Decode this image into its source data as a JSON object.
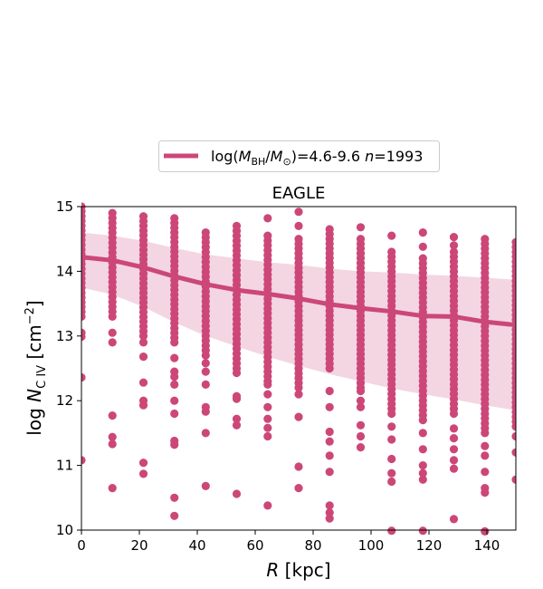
{
  "chart_data": {
    "type": "scatter",
    "title": "EAGLE",
    "xlabel": "R [kpc]",
    "ylabel": "log N_C IV [cm^-2]",
    "xlim": [
      0,
      150
    ],
    "ylim": [
      10,
      15
    ],
    "xticks": [
      "0",
      "20",
      "40",
      "60",
      "80",
      "100",
      "120",
      "140"
    ],
    "yticks": [
      "10",
      "11",
      "12",
      "13",
      "14",
      "15"
    ],
    "grid": false,
    "legend_position": "top-center",
    "colors": {
      "series": "#cc4778",
      "band": "#f3d6e2"
    },
    "series": [
      {
        "name": "log(M_BH/M_⊙)=4.6-9.6 n=1993",
        "type": "line",
        "x": [
          0,
          10.7,
          21.4,
          32.1,
          42.9,
          53.6,
          64.3,
          75,
          85.7,
          96.4,
          107.1,
          117.9,
          128.6,
          139.3,
          150
        ],
        "y": [
          14.22,
          14.17,
          14.06,
          13.92,
          13.8,
          13.71,
          13.65,
          13.58,
          13.49,
          13.43,
          13.38,
          13.31,
          13.3,
          13.22,
          13.17
        ]
      }
    ],
    "band": {
      "x": [
        0,
        10.7,
        21.4,
        32.1,
        42.9,
        53.6,
        64.3,
        75,
        85.7,
        96.4,
        107.1,
        117.9,
        128.6,
        139.3,
        150
      ],
      "upper": [
        14.6,
        14.55,
        14.47,
        14.36,
        14.26,
        14.2,
        14.14,
        14.1,
        14.04,
        14.0,
        13.98,
        13.95,
        13.93,
        13.9,
        13.87
      ],
      "lower": [
        13.75,
        13.64,
        13.45,
        13.21,
        13.0,
        12.84,
        12.68,
        12.54,
        12.41,
        12.3,
        12.19,
        12.1,
        12.02,
        11.93,
        11.85
      ]
    },
    "scatter_columns": [
      {
        "x": 0,
        "core": [
          13.3,
          15.0
        ],
        "extra": [
          13.05,
          12.99,
          12.36,
          11.08
        ]
      },
      {
        "x": 10.7,
        "core": [
          13.3,
          14.9
        ],
        "extra": [
          13.05,
          12.9,
          11.77,
          11.44,
          11.33,
          10.65
        ]
      },
      {
        "x": 21.4,
        "core": [
          13.0,
          14.85
        ],
        "extra": [
          12.9,
          12.68,
          12.28,
          12.0,
          11.93,
          11.04,
          10.87
        ]
      },
      {
        "x": 32.1,
        "core": [
          12.9,
          14.82
        ],
        "extra": [
          12.66,
          12.45,
          12.37,
          12.25,
          12.0,
          11.8,
          11.38,
          11.32,
          10.5,
          10.22
        ]
      },
      {
        "x": 42.9,
        "core": [
          12.7,
          14.6
        ],
        "extra": [
          12.58,
          12.45,
          12.25,
          11.9,
          11.83,
          11.5,
          10.68
        ]
      },
      {
        "x": 53.6,
        "core": [
          12.5,
          14.7
        ],
        "extra": [
          12.43,
          12.07,
          12.03,
          11.72,
          11.62,
          10.56
        ]
      },
      {
        "x": 64.3,
        "core": [
          12.3,
          14.55
        ],
        "extra": [
          14.82,
          12.25,
          12.1,
          11.9,
          11.72,
          11.58,
          11.45,
          10.38
        ]
      },
      {
        "x": 75,
        "core": [
          12.2,
          14.5
        ],
        "extra": [
          14.92,
          14.7,
          12.1,
          11.75,
          10.98,
          10.65
        ]
      },
      {
        "x": 85.7,
        "core": [
          12.5,
          14.65
        ],
        "extra": [
          12.15,
          11.9,
          11.52,
          11.37,
          11.15,
          10.9,
          10.38,
          10.27,
          10.18
        ]
      },
      {
        "x": 96.4,
        "core": [
          12.2,
          14.5
        ],
        "extra": [
          14.68,
          12.15,
          12.0,
          11.9,
          11.62,
          11.45,
          11.28
        ]
      },
      {
        "x": 107.1,
        "core": [
          11.8,
          14.3
        ],
        "extra": [
          14.55,
          11.6,
          11.4,
          11.1,
          10.88,
          10.75,
          9.99
        ]
      },
      {
        "x": 117.9,
        "core": [
          11.7,
          14.2
        ],
        "extra": [
          14.6,
          14.38,
          11.5,
          11.25,
          11.0,
          10.88,
          10.78,
          9.99
        ]
      },
      {
        "x": 128.6,
        "core": [
          11.8,
          14.3
        ],
        "extra": [
          14.53,
          14.4,
          11.57,
          11.42,
          11.25,
          11.08,
          10.95,
          10.17
        ]
      },
      {
        "x": 139.3,
        "core": [
          11.5,
          14.5
        ],
        "extra": [
          11.3,
          11.15,
          10.9,
          10.65,
          10.58,
          9.98
        ]
      },
      {
        "x": 150,
        "core": [
          11.6,
          14.45
        ],
        "extra": [
          11.45,
          11.2,
          10.78
        ]
      }
    ]
  }
}
